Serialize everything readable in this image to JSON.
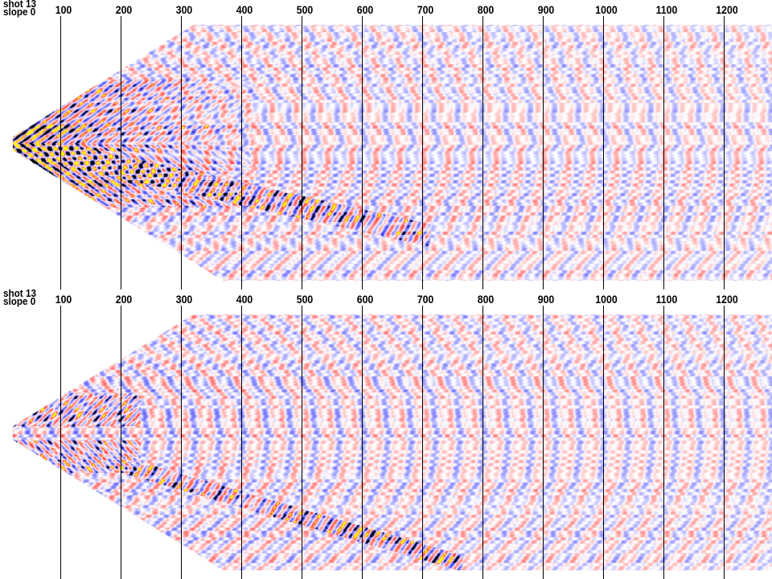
{
  "panels": [
    {
      "id": "top",
      "shot_label": "shot 13",
      "slope_label": "slope 0",
      "ticks": [
        "100",
        "200",
        "300",
        "400",
        "500",
        "600",
        "700",
        "800",
        "900",
        "1000",
        "1100",
        "1200"
      ]
    },
    {
      "id": "bottom",
      "shot_label": "shot 13",
      "slope_label": "slope 0",
      "ticks": [
        "100",
        "200",
        "300",
        "400",
        "500",
        "600",
        "700",
        "800",
        "900",
        "1000",
        "1100",
        "1200"
      ]
    }
  ],
  "colormap": {
    "negative": "#2a2ae0",
    "positive": "#e02a2a",
    "strong_negative": "#000000",
    "strong_positive": "#ffff00",
    "background": "#ffffff"
  }
}
